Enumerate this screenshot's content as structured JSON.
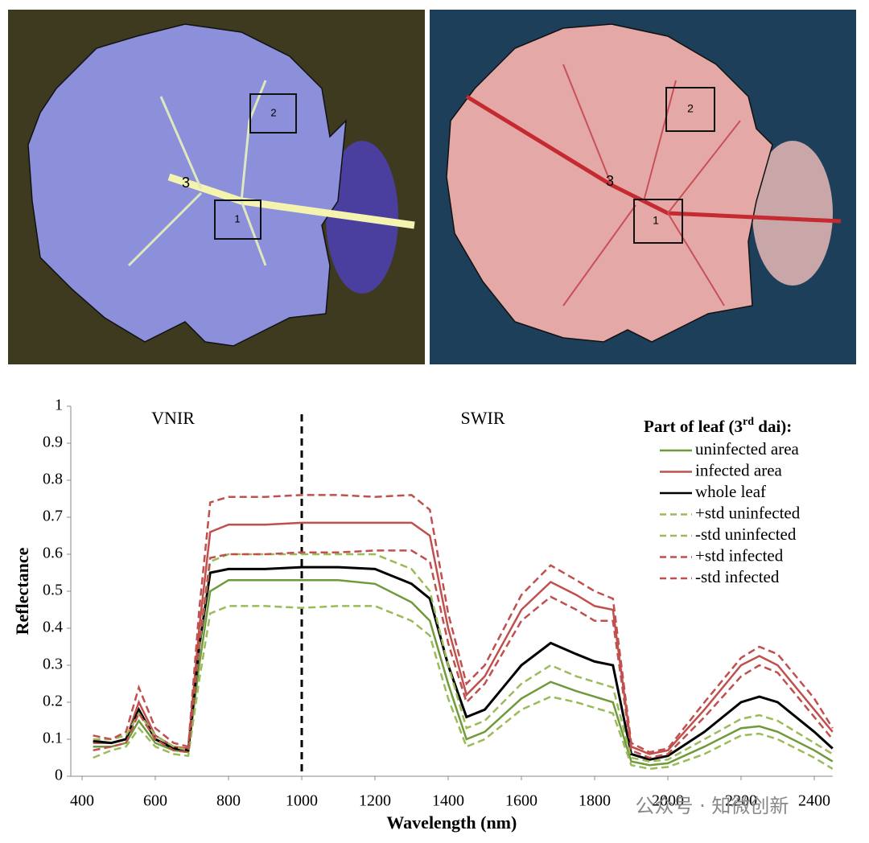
{
  "images": [
    {
      "labels": [
        "2",
        "3",
        "1"
      ]
    },
    {
      "labels": [
        "2",
        "3",
        "1"
      ]
    }
  ],
  "watermark": "公众号 · 知微创新",
  "chart_data": {
    "type": "line",
    "y_label": "Reflectance",
    "x_label": "Wavelength (nm)",
    "annotations": [
      "VNIR",
      "SWIR"
    ],
    "vline": 1000,
    "legend_title": [
      "Part of leaf (3",
      "rd",
      " dai):"
    ],
    "legend": "upper right",
    "xlim": [
      400,
      2450
    ],
    "ylim": [
      0,
      1
    ],
    "xticks": [
      400,
      600,
      800,
      1000,
      1200,
      1400,
      1600,
      1800,
      2000,
      2200,
      2400
    ],
    "yticks": [
      0,
      0.1,
      0.2,
      0.3,
      0.4,
      0.5,
      0.6,
      0.7,
      0.8,
      0.9,
      1
    ],
    "x": [
      430,
      480,
      520,
      555,
      600,
      650,
      690,
      720,
      750,
      800,
      900,
      1000,
      1100,
      1200,
      1300,
      1350,
      1400,
      1450,
      1500,
      1600,
      1680,
      1750,
      1800,
      1850,
      1900,
      1950,
      2000,
      2100,
      2200,
      2250,
      2300,
      2400,
      2450
    ],
    "series": [
      {
        "name": "uninfected area",
        "color": "#6f9a3c",
        "dashed": false,
        "values": [
          0.08,
          0.08,
          0.09,
          0.15,
          0.09,
          0.07,
          0.065,
          0.3,
          0.5,
          0.53,
          0.53,
          0.53,
          0.53,
          0.52,
          0.47,
          0.42,
          0.25,
          0.1,
          0.12,
          0.21,
          0.255,
          0.23,
          0.215,
          0.2,
          0.04,
          0.03,
          0.035,
          0.08,
          0.13,
          0.135,
          0.12,
          0.07,
          0.04
        ]
      },
      {
        "name": "infected area",
        "color": "#c0504d",
        "dashed": false,
        "values": [
          0.09,
          0.09,
          0.1,
          0.2,
          0.11,
          0.08,
          0.075,
          0.4,
          0.66,
          0.68,
          0.68,
          0.685,
          0.685,
          0.685,
          0.685,
          0.65,
          0.4,
          0.22,
          0.27,
          0.45,
          0.525,
          0.49,
          0.46,
          0.45,
          0.08,
          0.06,
          0.07,
          0.18,
          0.3,
          0.325,
          0.3,
          0.18,
          0.12
        ]
      },
      {
        "name": "whole leaf",
        "color": "#000000",
        "dashed": false,
        "values": [
          0.095,
          0.09,
          0.1,
          0.18,
          0.1,
          0.075,
          0.07,
          0.35,
          0.55,
          0.56,
          0.56,
          0.565,
          0.565,
          0.56,
          0.52,
          0.48,
          0.3,
          0.16,
          0.18,
          0.3,
          0.36,
          0.33,
          0.31,
          0.3,
          0.06,
          0.045,
          0.055,
          0.12,
          0.2,
          0.215,
          0.2,
          0.12,
          0.075
        ]
      },
      {
        "name": "+std uninfected",
        "color": "#9bbb59",
        "dashed": true,
        "values": [
          0.1,
          0.1,
          0.11,
          0.17,
          0.11,
          0.08,
          0.07,
          0.35,
          0.58,
          0.6,
          0.6,
          0.6,
          0.6,
          0.6,
          0.56,
          0.5,
          0.3,
          0.13,
          0.15,
          0.25,
          0.3,
          0.27,
          0.255,
          0.24,
          0.05,
          0.04,
          0.045,
          0.1,
          0.155,
          0.165,
          0.15,
          0.09,
          0.06
        ]
      },
      {
        "name": "-std uninfected",
        "color": "#9bbb59",
        "dashed": true,
        "values": [
          0.05,
          0.07,
          0.08,
          0.13,
          0.08,
          0.06,
          0.055,
          0.26,
          0.44,
          0.46,
          0.46,
          0.455,
          0.46,
          0.46,
          0.42,
          0.38,
          0.21,
          0.08,
          0.1,
          0.18,
          0.215,
          0.2,
          0.185,
          0.17,
          0.03,
          0.02,
          0.025,
          0.06,
          0.11,
          0.115,
          0.1,
          0.05,
          0.02
        ]
      },
      {
        "name": "+std infected",
        "color": "#c0504d",
        "dashed": true,
        "values": [
          0.11,
          0.1,
          0.12,
          0.24,
          0.13,
          0.09,
          0.08,
          0.45,
          0.74,
          0.755,
          0.755,
          0.76,
          0.76,
          0.755,
          0.76,
          0.72,
          0.44,
          0.25,
          0.3,
          0.49,
          0.57,
          0.53,
          0.5,
          0.48,
          0.09,
          0.065,
          0.075,
          0.2,
          0.32,
          0.35,
          0.33,
          0.21,
          0.13
        ]
      },
      {
        "name": "-std infected",
        "color": "#c0504d",
        "dashed": true,
        "values": [
          0.07,
          0.08,
          0.09,
          0.17,
          0.1,
          0.07,
          0.065,
          0.36,
          0.59,
          0.6,
          0.6,
          0.605,
          0.605,
          0.61,
          0.61,
          0.58,
          0.36,
          0.2,
          0.25,
          0.42,
          0.485,
          0.45,
          0.42,
          0.42,
          0.07,
          0.05,
          0.06,
          0.16,
          0.27,
          0.3,
          0.28,
          0.16,
          0.1
        ]
      }
    ]
  }
}
